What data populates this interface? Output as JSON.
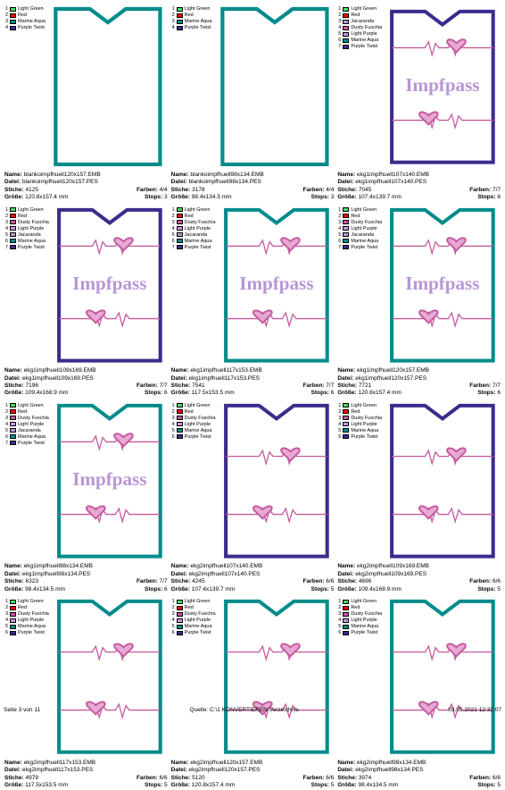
{
  "colors": {
    "lightGreen": "#4bd964",
    "red": "#ff0000",
    "jacaranda": "#b896d4",
    "dustyFuschia": "#c45a9e",
    "lightPurple": "#c896e8",
    "marineAqua": "#008b8b",
    "purpleTwist": "#3d2b8c"
  },
  "labels": {
    "name": "Name:",
    "datei": "Datei:",
    "stiche": "Stiche:",
    "farben": "Farben:",
    "groesse": "Größe:",
    "stops": "Stops:"
  },
  "legendNames": {
    "lightGreen": "Light Green",
    "red": "Red",
    "jacaranda": "Jacaranda",
    "dustyFuschia": "Dusty Fuschia",
    "lightPurple": "Light Purple",
    "marineAqua": "Marine Aqua",
    "purpleTwist": "Purple Twist"
  },
  "pageFooter": {
    "left": "Seite 3 von 11",
    "center": "Quelle: C:\\1 KONVERTIEREN Verzeichnis",
    "right": "03.05.2021 12:32:07"
  },
  "impfpassText": "Impfpass",
  "items": [
    {
      "name": "blankoimpfhuell120x157.EMB",
      "datei": "blankoimpfhuell120x157.PES",
      "stiche": "4125",
      "farben": "4/4",
      "groesse": "120.8x157.4 mm",
      "stops": "3",
      "legend": [
        "lightGreen",
        "red",
        "marineAqua",
        "purpleTwist"
      ],
      "design": "blank",
      "border": "#008b8b"
    },
    {
      "name": "blankoimpfhuell98x134.EMB",
      "datei": "blankoimpfhuell98x134.PES",
      "stiche": "3178",
      "farben": "4/4",
      "groesse": "98.4x134.5 mm",
      "stops": "3",
      "legend": [
        "lightGreen",
        "red",
        "marineAqua",
        "purpleTwist"
      ],
      "design": "blank",
      "border": "#008b8b"
    },
    {
      "name": "ekg1impfhuell107x140.EMB",
      "datei": "ekg1impfhuell107x140.PES",
      "stiche": "7045",
      "farben": "7/7",
      "groesse": "107.4x139.7 mm",
      "stops": "6",
      "legend": [
        "lightGreen",
        "red",
        "jacaranda",
        "dustyFuschia",
        "lightPurple",
        "marineAqua",
        "purpleTwist"
      ],
      "design": "ekg1",
      "border": "#3d2b8c"
    },
    {
      "name": "ekg1impfhuell109x169.EMB",
      "datei": "ekg1impfhuell109x169.PES",
      "stiche": "7196",
      "farben": "7/7",
      "groesse": "109.4x168.9 mm",
      "stops": "6",
      "legend": [
        "lightGreen",
        "red",
        "dustyFuschia",
        "lightPurple",
        "jacaranda",
        "marineAqua",
        "purpleTwist"
      ],
      "design": "ekg1",
      "border": "#3d2b8c"
    },
    {
      "name": "ekg1impfhuell117x153.EMB",
      "datei": "ekg1impfhuell117x153.PES",
      "stiche": "7541",
      "farben": "7/7",
      "groesse": "117.5x153.5 mm",
      "stops": "6",
      "legend": [
        "lightGreen",
        "red",
        "dustyFuschia",
        "lightPurple",
        "jacaranda",
        "marineAqua",
        "purpleTwist"
      ],
      "design": "ekg1",
      "border": "#008b8b"
    },
    {
      "name": "ekg1impfhuell120x157.EMB",
      "datei": "ekg1impfhuell120x157.PES",
      "stiche": "7721",
      "farben": "7/7",
      "groesse": "120.8x157.4 mm",
      "stops": "6",
      "legend": [
        "lightGreen",
        "red",
        "dustyFuschia",
        "lightPurple",
        "jacaranda",
        "marineAqua",
        "purpleTwist"
      ],
      "design": "ekg1",
      "border": "#008b8b"
    },
    {
      "name": "ekg1impfhuell98x134.EMB",
      "datei": "ekg1impfhuell98x134.PES",
      "stiche": "6323",
      "farben": "7/7",
      "groesse": "98.4x134.5 mm",
      "stops": "6",
      "legend": [
        "lightGreen",
        "red",
        "dustyFuschia",
        "lightPurple",
        "jacaranda",
        "marineAqua",
        "purpleTwist"
      ],
      "design": "ekg1",
      "border": "#008b8b"
    },
    {
      "name": "ekg2impfhuell107x140.EMB",
      "datei": "ekg2impfhuell107x140.PES",
      "stiche": "4245",
      "farben": "6/6",
      "groesse": "107.4x139.7 mm",
      "stops": "5",
      "legend": [
        "lightGreen",
        "red",
        "dustyFuschia",
        "lightPurple",
        "marineAqua",
        "purpleTwist"
      ],
      "design": "ekg2",
      "border": "#3d2b8c"
    },
    {
      "name": "ekg2impfhuell109x169.EMB",
      "datei": "ekg2impfhuell109x169.PES",
      "stiche": "4696",
      "farben": "6/6",
      "groesse": "109.4x168.9 mm",
      "stops": "5",
      "legend": [
        "lightGreen",
        "red",
        "dustyFuschia",
        "lightPurple",
        "marineAqua",
        "purpleTwist"
      ],
      "design": "ekg2",
      "border": "#3d2b8c"
    },
    {
      "name": "ekg2impfhuell117x153.EMB",
      "datei": "ekg2impfhuell117x153.PES",
      "stiche": "4979",
      "farben": "6/6",
      "groesse": "117.5x153.5 mm",
      "stops": "5",
      "legend": [
        "lightGreen",
        "red",
        "dustyFuschia",
        "lightPurple",
        "marineAqua",
        "purpleTwist"
      ],
      "design": "ekg2",
      "border": "#008b8b"
    },
    {
      "name": "ekg2impfhuell120x157.EMB",
      "datei": "ekg2impfhuell120x157.PES",
      "stiche": "5120",
      "farben": "6/6",
      "groesse": "120.8x157.4 mm",
      "stops": "5",
      "legend": [
        "lightGreen",
        "red",
        "dustyFuschia",
        "lightPurple",
        "marineAqua",
        "purpleTwist"
      ],
      "design": "ekg2",
      "border": "#008b8b"
    },
    {
      "name": "ekg2impfhuell98x134.EMB",
      "datei": "ekg2impfhuell98x134.PES",
      "stiche": "3974",
      "farben": "6/6",
      "groesse": "98.4x134.5 mm",
      "stops": "5",
      "legend": [
        "lightGreen",
        "red",
        "dustyFuschia",
        "lightPurple",
        "marineAqua",
        "purpleTwist"
      ],
      "design": "ekg2",
      "border": "#008b8b"
    }
  ]
}
